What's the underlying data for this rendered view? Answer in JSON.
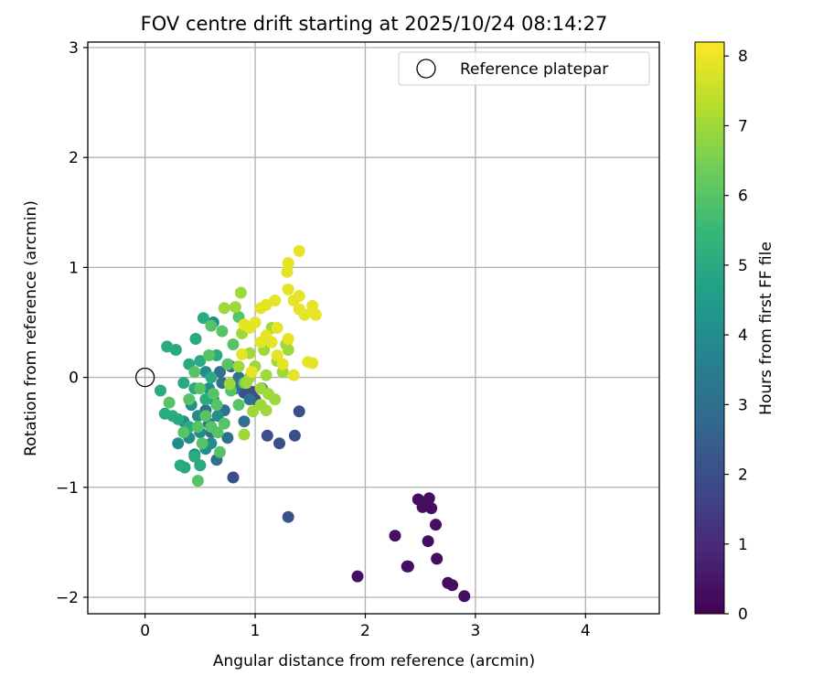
{
  "chart_data": {
    "type": "scatter",
    "title": "FOV centre drift starting at 2025/10/24 08:14:27",
    "xlabel": "Angular distance from reference (arcmin)",
    "ylabel": "Rotation from reference (arcmin)",
    "xlim": [
      -0.52,
      4.67
    ],
    "ylim": [
      -2.15,
      3.05
    ],
    "xticks": [
      0,
      1,
      2,
      3,
      4
    ],
    "yticks": [
      -2,
      -1,
      0,
      1,
      2,
      3
    ],
    "xtick_labels": [
      "0",
      "1",
      "2",
      "3",
      "4"
    ],
    "ytick_labels": [
      "−2",
      "−1",
      "0",
      "1",
      "2",
      "3"
    ],
    "grid": true,
    "legend": {
      "location": "top-right",
      "entries": [
        "Reference platepar"
      ]
    },
    "reference_point": {
      "x": 0,
      "y": 0,
      "label": "Reference platepar"
    },
    "colorbar": {
      "label": "Hours from first FF file",
      "range": [
        0,
        8.2
      ],
      "ticks": [
        0,
        1,
        2,
        3,
        4,
        5,
        6,
        7,
        8
      ],
      "tick_labels": [
        "0",
        "1",
        "2",
        "3",
        "4",
        "5",
        "6",
        "7",
        "8"
      ],
      "colormap": "viridis",
      "stops": [
        "#440154",
        "#482878",
        "#3e4989",
        "#31688e",
        "#26828e",
        "#1f9e89",
        "#35b779",
        "#6ece58",
        "#b5de2b",
        "#fde725"
      ]
    },
    "series": [
      {
        "name": "purple cluster (0-1 h)",
        "hours": 0.3,
        "points": [
          [
            1.93,
            -1.81
          ],
          [
            2.27,
            -1.44
          ],
          [
            2.38,
            -1.72
          ],
          [
            2.39,
            -1.72
          ],
          [
            2.48,
            -1.11
          ],
          [
            2.52,
            -1.18
          ],
          [
            2.57,
            -1.49
          ],
          [
            2.58,
            -1.1
          ],
          [
            2.6,
            -1.19
          ],
          [
            2.64,
            -1.34
          ],
          [
            2.65,
            -1.65
          ],
          [
            2.75,
            -1.87
          ],
          [
            2.79,
            -1.89
          ],
          [
            2.9,
            -1.99
          ],
          [
            2.55,
            -1.15
          ]
        ]
      },
      {
        "name": "dark blue (1.5-2.5 h)",
        "hours": 2.0,
        "points": [
          [
            1.11,
            -0.53
          ],
          [
            1.22,
            -0.6
          ],
          [
            1.3,
            -1.27
          ],
          [
            1.36,
            -0.53
          ],
          [
            1.4,
            -0.31
          ],
          [
            1.0,
            -0.2
          ],
          [
            0.97,
            -0.13
          ],
          [
            0.8,
            -0.91
          ],
          [
            0.9,
            -0.14
          ],
          [
            1.06,
            -0.1
          ]
        ]
      },
      {
        "name": "steel blue (2.5-3.5 h)",
        "hours": 3.0,
        "points": [
          [
            0.65,
            -0.75
          ],
          [
            0.6,
            -0.5
          ],
          [
            0.72,
            -0.3
          ],
          [
            0.78,
            0.1
          ],
          [
            0.7,
            -0.05
          ],
          [
            0.85,
            0.0
          ],
          [
            0.55,
            -0.3
          ],
          [
            0.62,
            -0.2
          ],
          [
            0.75,
            -0.55
          ],
          [
            0.9,
            -0.4
          ],
          [
            0.68,
            0.05
          ],
          [
            0.58,
            -0.42
          ],
          [
            0.82,
            -0.1
          ],
          [
            0.95,
            -0.2
          ]
        ]
      },
      {
        "name": "teal (3.5-4.5 h)",
        "hours": 4.0,
        "points": [
          [
            0.5,
            -0.8
          ],
          [
            0.45,
            -0.7
          ],
          [
            0.4,
            -0.55
          ],
          [
            0.55,
            -0.65
          ],
          [
            0.35,
            -0.4
          ],
          [
            0.62,
            0.5
          ],
          [
            0.58,
            -0.1
          ],
          [
            0.48,
            -0.35
          ],
          [
            0.3,
            -0.6
          ],
          [
            0.66,
            -0.35
          ],
          [
            0.5,
            -0.5
          ],
          [
            0.42,
            -0.25
          ],
          [
            0.6,
            -0.6
          ],
          [
            0.55,
            0.05
          ]
        ]
      },
      {
        "name": "green-teal (4.5-5.5 h)",
        "hours": 5.0,
        "points": [
          [
            0.53,
            0.54
          ],
          [
            0.46,
            0.35
          ],
          [
            0.4,
            0.12
          ],
          [
            0.35,
            -0.05
          ],
          [
            0.3,
            -0.38
          ],
          [
            0.25,
            -0.35
          ],
          [
            0.18,
            -0.33
          ],
          [
            0.14,
            -0.12
          ],
          [
            0.2,
            0.28
          ],
          [
            0.32,
            -0.8
          ],
          [
            0.36,
            -0.82
          ],
          [
            0.5,
            -0.8
          ],
          [
            0.45,
            -0.1
          ],
          [
            0.5,
            0.15
          ],
          [
            0.6,
            0.0
          ],
          [
            0.65,
            0.2
          ],
          [
            0.4,
            -0.45
          ],
          [
            0.55,
            -0.2
          ],
          [
            0.28,
            0.25
          ],
          [
            0.45,
            -0.72
          ]
        ]
      },
      {
        "name": "green (5.5-6.5 h)",
        "hours": 6.0,
        "points": [
          [
            0.48,
            -0.94
          ],
          [
            0.68,
            -0.68
          ],
          [
            0.6,
            0.47
          ],
          [
            0.22,
            -0.23
          ],
          [
            0.35,
            -0.5
          ],
          [
            0.55,
            -0.35
          ],
          [
            0.48,
            -0.45
          ],
          [
            0.62,
            -0.15
          ],
          [
            0.72,
            -0.42
          ],
          [
            0.85,
            -0.25
          ],
          [
            0.8,
            0.3
          ],
          [
            0.7,
            0.42
          ],
          [
            0.78,
            -0.12
          ],
          [
            0.45,
            0.05
          ],
          [
            0.58,
            0.2
          ],
          [
            0.66,
            -0.5
          ],
          [
            0.9,
            -0.05
          ],
          [
            0.52,
            -0.6
          ],
          [
            0.75,
            0.12
          ],
          [
            0.4,
            -0.2
          ],
          [
            0.65,
            -0.25
          ],
          [
            0.5,
            -0.1
          ],
          [
            0.85,
            0.55
          ],
          [
            0.6,
            -0.45
          ]
        ]
      },
      {
        "name": "light green (6.5-7.5 h)",
        "hours": 7.0,
        "points": [
          [
            0.72,
            0.63
          ],
          [
            0.82,
            0.64
          ],
          [
            0.87,
            0.77
          ],
          [
            0.77,
            -0.06
          ],
          [
            0.9,
            -0.52
          ],
          [
            0.95,
            0.22
          ],
          [
            1.1,
            0.02
          ],
          [
            1.05,
            -0.1
          ],
          [
            1.2,
            0.15
          ],
          [
            1.28,
            0.3
          ],
          [
            1.1,
            -0.3
          ],
          [
            0.98,
            -0.31
          ],
          [
            1.05,
            -0.25
          ],
          [
            1.15,
            0.45
          ],
          [
            1.0,
            0.1
          ],
          [
            0.88,
            0.4
          ],
          [
            0.92,
            -0.05
          ],
          [
            1.25,
            0.05
          ],
          [
            0.85,
            0.1
          ],
          [
            1.18,
            -0.2
          ],
          [
            1.08,
            0.25
          ],
          [
            0.95,
            0.0
          ],
          [
            1.3,
            0.25
          ],
          [
            1.12,
            -0.15
          ]
        ]
      },
      {
        "name": "yellow (7.5-8.2 h)",
        "hours": 7.9,
        "points": [
          [
            1.4,
            1.15
          ],
          [
            1.3,
            1.04
          ],
          [
            1.29,
            0.96
          ],
          [
            1.3,
            0.8
          ],
          [
            1.35,
            0.7
          ],
          [
            1.4,
            0.74
          ],
          [
            1.52,
            0.65
          ],
          [
            1.55,
            0.57
          ],
          [
            1.45,
            0.57
          ],
          [
            1.18,
            0.7
          ],
          [
            1.1,
            0.66
          ],
          [
            1.05,
            0.63
          ],
          [
            1.0,
            0.5
          ],
          [
            0.9,
            0.48
          ],
          [
            0.95,
            0.45
          ],
          [
            1.48,
            0.14
          ],
          [
            1.52,
            0.13
          ],
          [
            1.35,
            0.02
          ],
          [
            1.2,
            0.2
          ],
          [
            1.1,
            0.38
          ],
          [
            1.2,
            0.45
          ],
          [
            1.15,
            0.32
          ],
          [
            1.05,
            0.32
          ],
          [
            0.97,
            0.05
          ],
          [
            0.88,
            0.21
          ],
          [
            1.3,
            0.35
          ],
          [
            1.4,
            0.62
          ],
          [
            1.25,
            0.12
          ]
        ]
      }
    ]
  }
}
